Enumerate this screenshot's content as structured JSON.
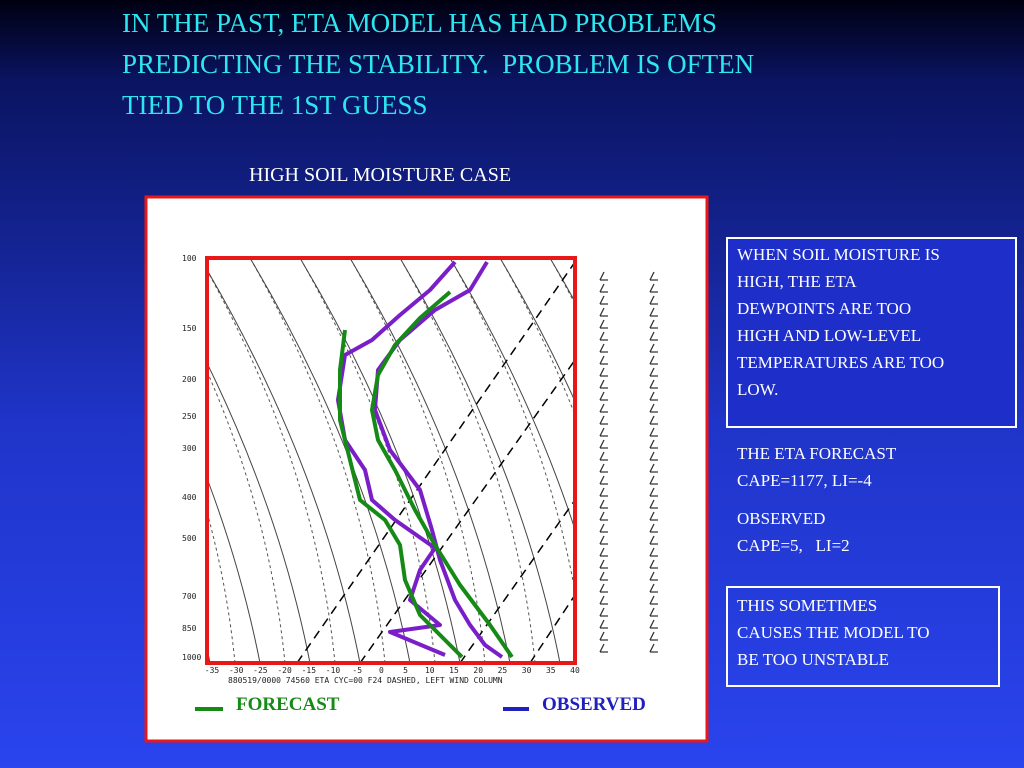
{
  "title_lines": [
    "IN THE PAST, ETA MODEL HAS HAD PROBLEMS",
    "PREDICTING THE STABILITY.  PROBLEM IS OFTEN",
    "TIED TO THE 1ST GUESS"
  ],
  "case_title": "HIGH SOIL MOISTURE CASE",
  "diagram": {
    "pressure_labels": [
      "100",
      "150",
      "200",
      "250",
      "300",
      "400",
      "500",
      "700",
      "850",
      "1000"
    ],
    "temperature_labels": [
      "-35",
      "-30",
      "-25",
      "-20",
      "-15",
      "-10",
      "-5",
      "0",
      "5",
      "10",
      "15",
      "20",
      "25",
      "30",
      "35",
      "40"
    ],
    "caption": "880519/0000 74560  ETA CYC=00 F24 DASHED, LEFT WIND COLUMN"
  },
  "legend": [
    "FORECAST",
    "OBSERVED"
  ],
  "notes": [
    {
      "lines": [
        "WHEN SOIL MOISTURE IS",
        "HIGH, THE ETA",
        "DEWPOINTS ARE TOO",
        "HIGH AND LOW-LEVEL",
        "TEMPERATURES ARE TOO",
        "LOW."
      ]
    },
    {
      "lines": [
        "THE ETA FORECAST",
        "CAPE=1177, LI=-4"
      ]
    },
    {
      "lines": [
        "OBSERVED",
        "CAPE=5,   LI=2"
      ]
    },
    {
      "lines": [
        "THIS SOMETIMES",
        "CAUSES THE MODEL TO",
        "BE TOO UNSTABLE"
      ]
    }
  ]
}
